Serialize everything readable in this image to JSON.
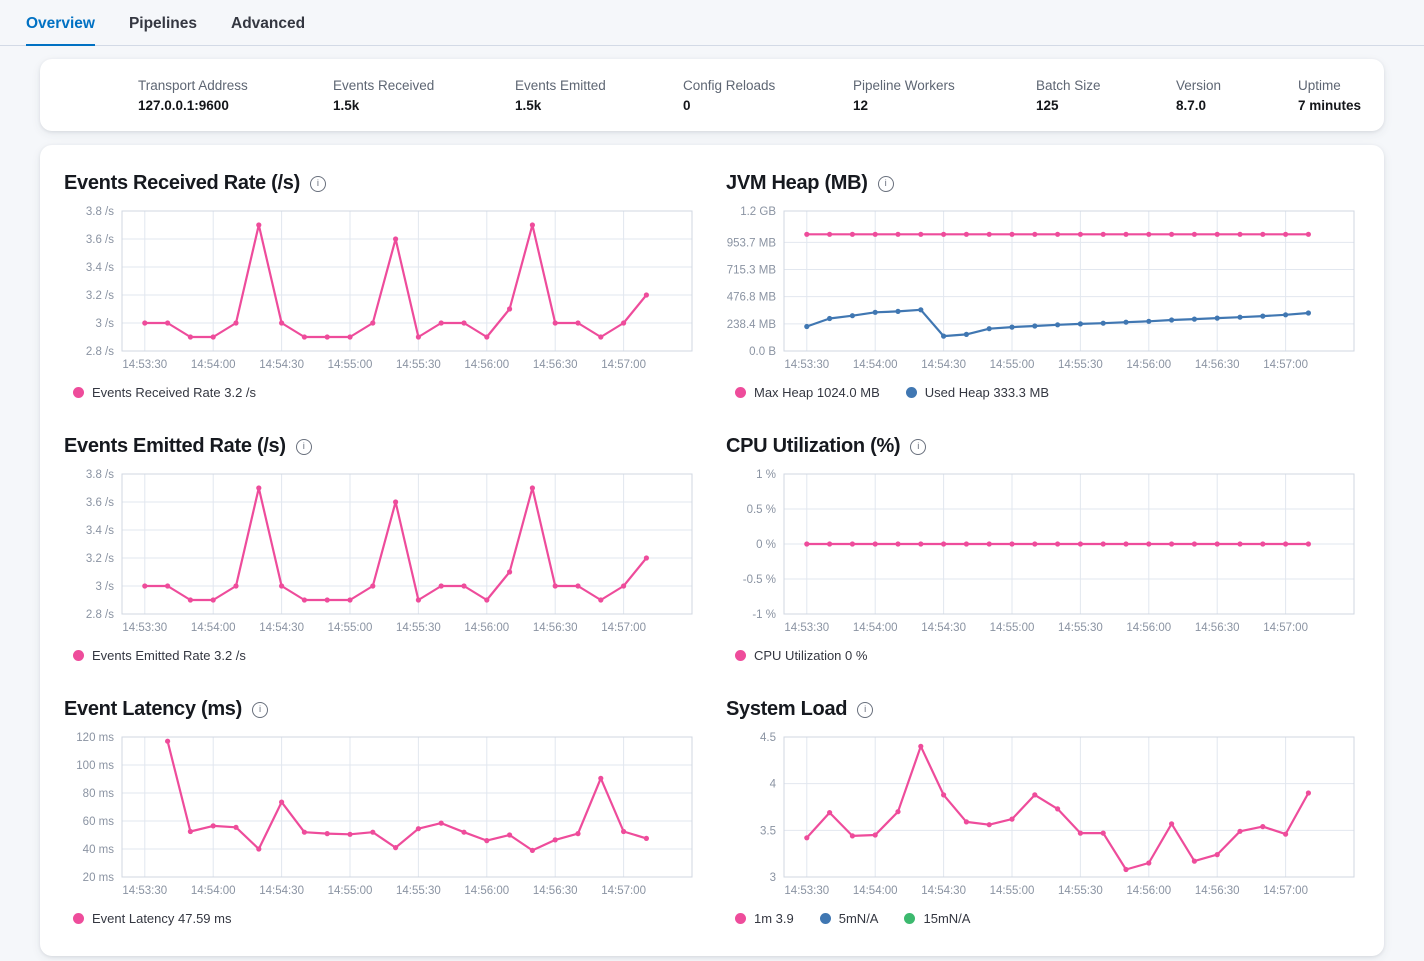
{
  "tabs": [
    {
      "label": "Overview",
      "active": true
    },
    {
      "label": "Pipelines",
      "active": false
    },
    {
      "label": "Advanced",
      "active": false
    }
  ],
  "stats": [
    {
      "label": "Transport Address",
      "value": "127.0.0.1:9600"
    },
    {
      "label": "Events Received",
      "value": "1.5k"
    },
    {
      "label": "Events Emitted",
      "value": "1.5k"
    },
    {
      "label": "Config Reloads",
      "value": "0"
    },
    {
      "label": "Pipeline Workers",
      "value": "12"
    },
    {
      "label": "Batch Size",
      "value": "125"
    },
    {
      "label": "Version",
      "value": "8.7.0"
    },
    {
      "label": "Uptime",
      "value": "7 minutes"
    }
  ],
  "colors": {
    "pink": "#ee4c9b",
    "blue": "#4077b2",
    "green": "#3cb96e",
    "tab_accent": "#0071c3",
    "grid": "#e2e7ef",
    "border": "#d0d7e2",
    "axis_text": "#8a93a2"
  },
  "time_labels": [
    "14:53:30",
    "14:54:00",
    "14:54:30",
    "14:55:00",
    "14:55:30",
    "14:56:00",
    "14:56:30",
    "14:57:00"
  ],
  "chart_data": [
    {
      "type": "line",
      "slug": "events-received-rate",
      "title": "Events Received Rate (/s)",
      "ylim": [
        2.8,
        3.8
      ],
      "y_ticks": [
        {
          "v": 2.8,
          "label": "2.8 /s"
        },
        {
          "v": 3,
          "label": "3 /s"
        },
        {
          "v": 3.2,
          "label": "3.2 /s"
        },
        {
          "v": 3.4,
          "label": "3.4 /s"
        },
        {
          "v": 3.6,
          "label": "3.6 /s"
        },
        {
          "v": 3.8,
          "label": "3.8 /s"
        }
      ],
      "x_first_point": "14:53:30",
      "x_step_seconds": 10,
      "grid": true,
      "legend_position": "bottom",
      "series": [
        {
          "name": "Events Received Rate",
          "color": "pink",
          "start_slot": 0,
          "values": [
            3,
            3,
            2.9,
            2.9,
            3,
            3.7,
            3,
            2.9,
            2.9,
            2.9,
            3,
            3.6,
            2.9,
            3,
            3,
            2.9,
            3.1,
            3.7,
            3,
            3,
            2.9,
            3,
            3.2
          ]
        }
      ],
      "legend": [
        {
          "color": "pink",
          "label": "Events Received Rate 3.2 /s"
        }
      ]
    },
    {
      "type": "line",
      "slug": "jvm-heap",
      "title": "JVM Heap (MB)",
      "ylim": [
        0,
        1228.8
      ],
      "y_ticks": [
        {
          "v": 0,
          "label": "0.0 B"
        },
        {
          "v": 238.4,
          "label": "238.4 MB"
        },
        {
          "v": 476.8,
          "label": "476.8 MB"
        },
        {
          "v": 715.3,
          "label": "715.3 MB"
        },
        {
          "v": 953.7,
          "label": "953.7 MB"
        },
        {
          "v": 1228.8,
          "label": "1.2 GB"
        }
      ],
      "x_first_point": "14:53:30",
      "x_step_seconds": 10,
      "grid": true,
      "legend_position": "bottom",
      "series": [
        {
          "name": "Max Heap",
          "color": "pink",
          "start_slot": 0,
          "values": [
            1024,
            1024,
            1024,
            1024,
            1024,
            1024,
            1024,
            1024,
            1024,
            1024,
            1024,
            1024,
            1024,
            1024,
            1024,
            1024,
            1024,
            1024,
            1024,
            1024,
            1024,
            1024,
            1024
          ]
        },
        {
          "name": "Used Heap",
          "color": "blue",
          "start_slot": 0,
          "values": [
            215,
            285,
            310,
            340,
            348,
            362,
            131,
            146,
            196,
            210,
            219,
            230,
            238,
            244,
            253,
            261,
            272,
            280,
            289,
            297,
            306,
            318,
            333.3
          ]
        }
      ],
      "legend": [
        {
          "color": "pink",
          "label": "Max Heap 1024.0 MB"
        },
        {
          "color": "blue",
          "label": "Used Heap 333.3 MB"
        }
      ]
    },
    {
      "type": "line",
      "slug": "events-emitted-rate",
      "title": "Events Emitted Rate (/s)",
      "ylim": [
        2.8,
        3.8
      ],
      "y_ticks": [
        {
          "v": 2.8,
          "label": "2.8 /s"
        },
        {
          "v": 3,
          "label": "3 /s"
        },
        {
          "v": 3.2,
          "label": "3.2 /s"
        },
        {
          "v": 3.4,
          "label": "3.4 /s"
        },
        {
          "v": 3.6,
          "label": "3.6 /s"
        },
        {
          "v": 3.8,
          "label": "3.8 /s"
        }
      ],
      "x_first_point": "14:53:30",
      "x_step_seconds": 10,
      "grid": true,
      "legend_position": "bottom",
      "series": [
        {
          "name": "Events Emitted Rate",
          "color": "pink",
          "start_slot": 0,
          "values": [
            3,
            3,
            2.9,
            2.9,
            3,
            3.7,
            3,
            2.9,
            2.9,
            2.9,
            3,
            3.6,
            2.9,
            3,
            3,
            2.9,
            3.1,
            3.7,
            3,
            3,
            2.9,
            3,
            3.2
          ]
        }
      ],
      "legend": [
        {
          "color": "pink",
          "label": "Events Emitted Rate 3.2 /s"
        }
      ]
    },
    {
      "type": "line",
      "slug": "cpu-utilization",
      "title": "CPU Utilization (%)",
      "ylim": [
        -1,
        1
      ],
      "y_ticks": [
        {
          "v": -1,
          "label": "-1 %"
        },
        {
          "v": -0.5,
          "label": "-0.5 %"
        },
        {
          "v": 0,
          "label": "0 %"
        },
        {
          "v": 0.5,
          "label": "0.5 %"
        },
        {
          "v": 1,
          "label": "1 %"
        }
      ],
      "x_first_point": "14:53:30",
      "x_step_seconds": 10,
      "grid": true,
      "legend_position": "bottom",
      "series": [
        {
          "name": "CPU Utilization",
          "color": "pink",
          "start_slot": 0,
          "values": [
            0,
            0,
            0,
            0,
            0,
            0,
            0,
            0,
            0,
            0,
            0,
            0,
            0,
            0,
            0,
            0,
            0,
            0,
            0,
            0,
            0,
            0,
            0
          ]
        }
      ],
      "legend": [
        {
          "color": "pink",
          "label": "CPU Utilization 0 %"
        }
      ]
    },
    {
      "type": "line",
      "slug": "event-latency",
      "title": "Event Latency (ms)",
      "ylim": [
        20,
        120
      ],
      "y_ticks": [
        {
          "v": 20,
          "label": "20 ms"
        },
        {
          "v": 40,
          "label": "40 ms"
        },
        {
          "v": 60,
          "label": "60 ms"
        },
        {
          "v": 80,
          "label": "80 ms"
        },
        {
          "v": 100,
          "label": "100 ms"
        },
        {
          "v": 120,
          "label": "120 ms"
        }
      ],
      "x_first_point": "14:53:40",
      "x_step_seconds": 10,
      "grid": true,
      "legend_position": "bottom",
      "series": [
        {
          "name": "Event Latency",
          "color": "pink",
          "start_slot": 1,
          "values": [
            117,
            52.5,
            56.5,
            55.5,
            40,
            73.5,
            52,
            51,
            50.5,
            52,
            41,
            54.5,
            58.5,
            52,
            46,
            50,
            39,
            46.5,
            51,
            90.5,
            52.5,
            47.59
          ]
        }
      ],
      "legend": [
        {
          "color": "pink",
          "label": "Event Latency 47.59 ms"
        }
      ]
    },
    {
      "type": "line",
      "slug": "system-load",
      "title": "System Load",
      "ylim": [
        3,
        4.5
      ],
      "y_ticks": [
        {
          "v": 3,
          "label": "3"
        },
        {
          "v": 3.5,
          "label": "3.5"
        },
        {
          "v": 4,
          "label": "4"
        },
        {
          "v": 4.5,
          "label": "4.5"
        }
      ],
      "x_first_point": "14:53:30",
      "x_step_seconds": 10,
      "grid": true,
      "legend_position": "bottom",
      "series": [
        {
          "name": "1m",
          "color": "pink",
          "start_slot": 0,
          "values": [
            3.42,
            3.69,
            3.44,
            3.45,
            3.7,
            4.4,
            3.88,
            3.59,
            3.56,
            3.62,
            3.88,
            3.73,
            3.47,
            3.47,
            3.08,
            3.15,
            3.57,
            3.17,
            3.24,
            3.49,
            3.54,
            3.46,
            3.9
          ]
        }
      ],
      "legend": [
        {
          "color": "pink",
          "label": "1m 3.9"
        },
        {
          "color": "blue",
          "label": "5mN/A"
        },
        {
          "color": "green",
          "label": "15mN/A"
        }
      ]
    }
  ]
}
